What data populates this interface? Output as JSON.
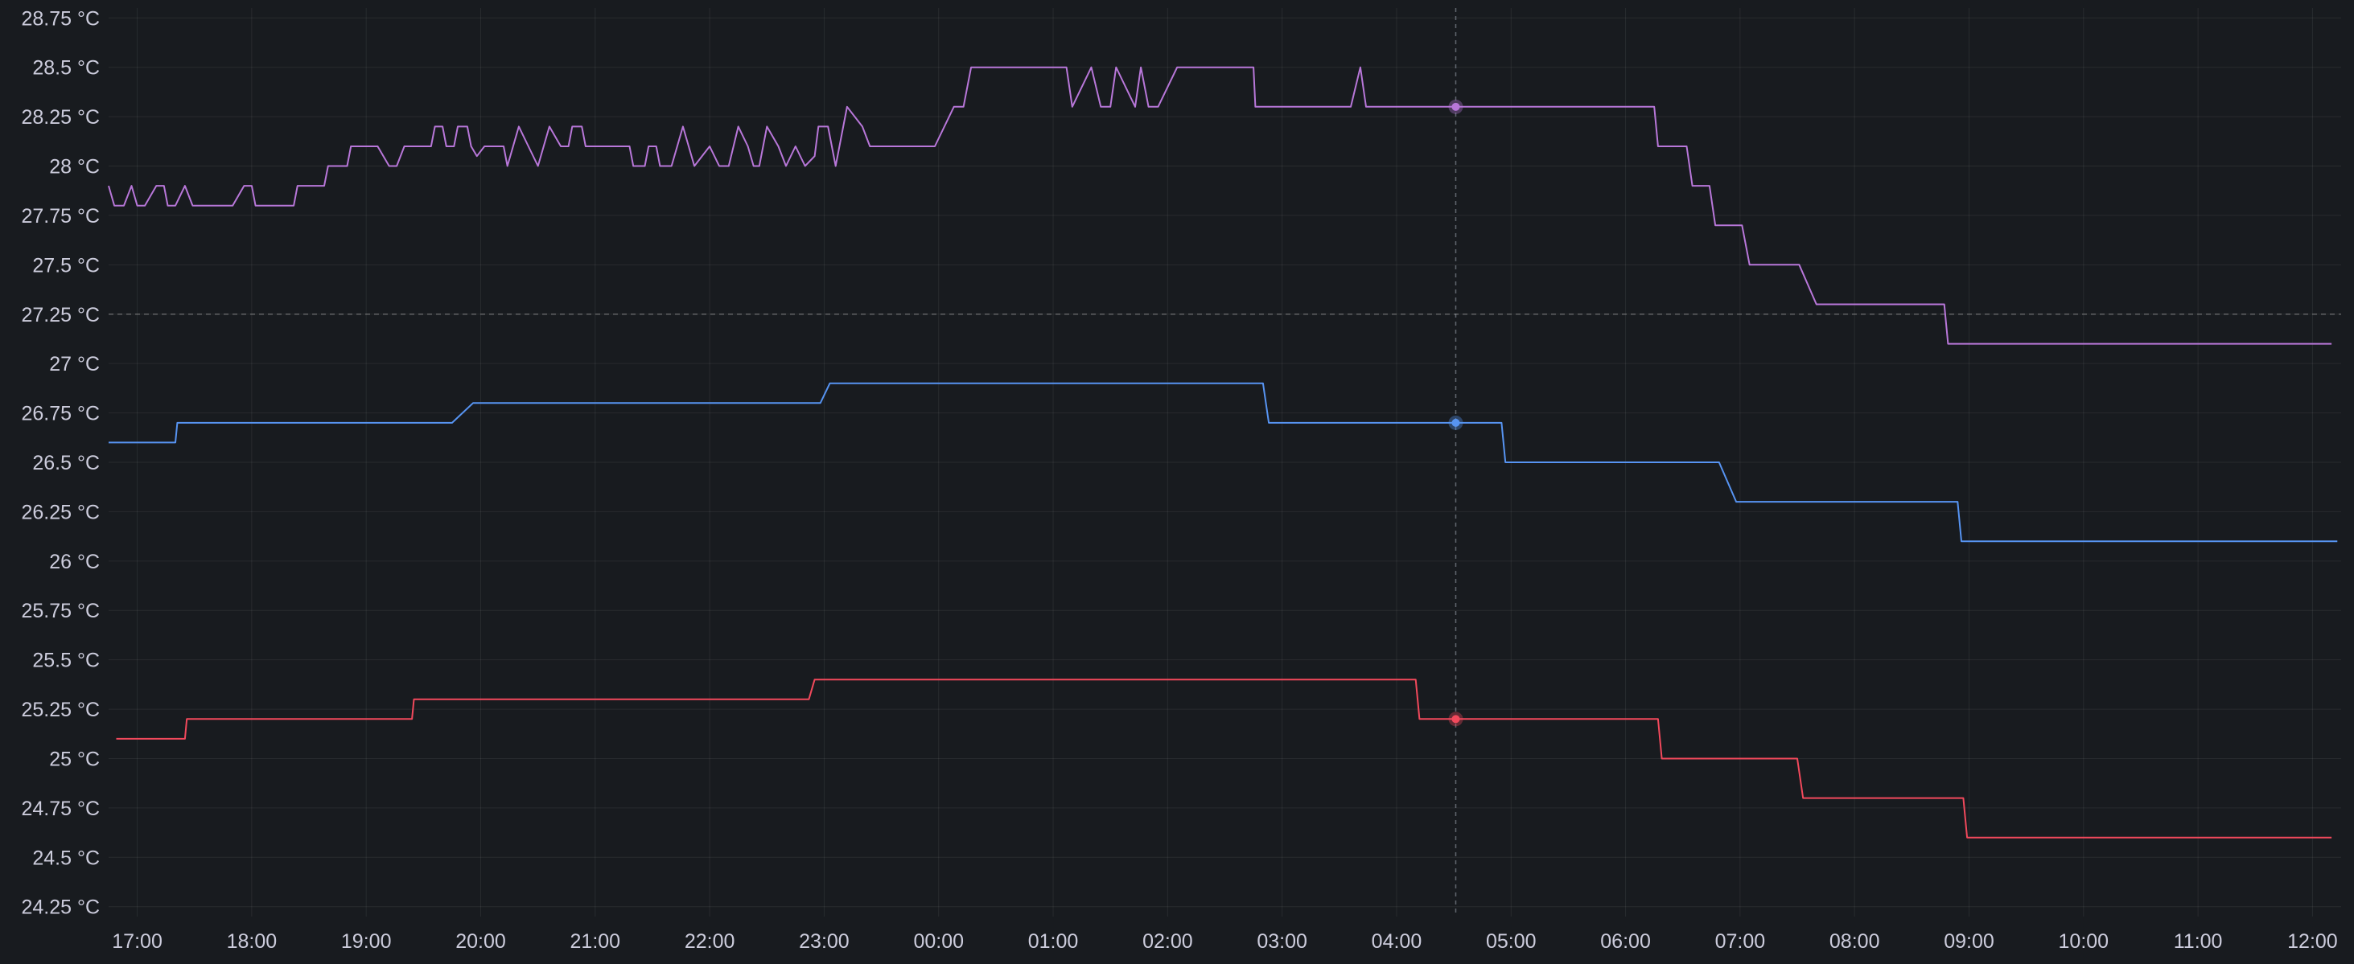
{
  "chart_data": {
    "type": "line",
    "title": "",
    "xlabel": "",
    "ylabel": "",
    "y_unit": "°C",
    "grid": true,
    "legend": "none",
    "ylim": [
      24.2,
      28.8
    ],
    "xlim": [
      "16:45",
      "12:15"
    ],
    "y_ticks": [
      "24.25 °C",
      "24.5 °C",
      "24.75 °C",
      "25 °C",
      "25.25 °C",
      "25.5 °C",
      "25.75 °C",
      "26 °C",
      "26.25 °C",
      "26.5 °C",
      "26.75 °C",
      "27 °C",
      "27.25 °C",
      "27.5 °C",
      "27.75 °C",
      "28 °C",
      "28.25 °C",
      "28.5 °C",
      "28.75 °C"
    ],
    "y_tick_values": [
      24.25,
      24.5,
      24.75,
      25,
      25.25,
      25.5,
      25.75,
      26,
      26.25,
      26.5,
      26.75,
      27,
      27.25,
      27.5,
      27.75,
      28,
      28.25,
      28.5,
      28.75
    ],
    "x_ticks": [
      "17:00",
      "18:00",
      "19:00",
      "20:00",
      "21:00",
      "22:00",
      "23:00",
      "00:00",
      "01:00",
      "02:00",
      "03:00",
      "04:00",
      "05:00",
      "06:00",
      "07:00",
      "08:00",
      "09:00",
      "10:00",
      "11:00",
      "12:00"
    ],
    "cursor_time": "04:31",
    "threshold_line": 27.25,
    "series": [
      {
        "color": "#b877d9",
        "cursor_value": 28.3,
        "points": [
          [
            "16:45",
            27.9
          ],
          [
            "16:48",
            27.8
          ],
          [
            "16:53",
            27.8
          ],
          [
            "16:57",
            27.9
          ],
          [
            "17:00",
            27.8
          ],
          [
            "17:04",
            27.8
          ],
          [
            "17:10",
            27.9
          ],
          [
            "17:14",
            27.9
          ],
          [
            "17:16",
            27.8
          ],
          [
            "17:20",
            27.8
          ],
          [
            "17:25",
            27.9
          ],
          [
            "17:29",
            27.8
          ],
          [
            "17:50",
            27.8
          ],
          [
            "17:56",
            27.9
          ],
          [
            "18:00",
            27.9
          ],
          [
            "18:02",
            27.8
          ],
          [
            "18:22",
            27.8
          ],
          [
            "18:24",
            27.9
          ],
          [
            "18:38",
            27.9
          ],
          [
            "18:40",
            28.0
          ],
          [
            "18:50",
            28.0
          ],
          [
            "18:52",
            28.1
          ],
          [
            "19:06",
            28.1
          ],
          [
            "19:12",
            28.0
          ],
          [
            "19:16",
            28.0
          ],
          [
            "19:20",
            28.1
          ],
          [
            "19:34",
            28.1
          ],
          [
            "19:36",
            28.2
          ],
          [
            "19:40",
            28.2
          ],
          [
            "19:42",
            28.1
          ],
          [
            "19:46",
            28.1
          ],
          [
            "19:48",
            28.2
          ],
          [
            "19:53",
            28.2
          ],
          [
            "19:55",
            28.1
          ],
          [
            "19:58",
            28.05
          ],
          [
            "20:02",
            28.1
          ],
          [
            "20:12",
            28.1
          ],
          [
            "20:14",
            28.0
          ],
          [
            "20:20",
            28.2
          ],
          [
            "20:25",
            28.1
          ],
          [
            "20:30",
            28.0
          ],
          [
            "20:36",
            28.2
          ],
          [
            "20:42",
            28.1
          ],
          [
            "20:46",
            28.1
          ],
          [
            "20:48",
            28.2
          ],
          [
            "20:53",
            28.2
          ],
          [
            "20:55",
            28.1
          ],
          [
            "21:18",
            28.1
          ],
          [
            "21:20",
            28.0
          ],
          [
            "21:26",
            28.0
          ],
          [
            "21:28",
            28.1
          ],
          [
            "21:32",
            28.1
          ],
          [
            "21:34",
            28.0
          ],
          [
            "21:40",
            28.0
          ],
          [
            "21:46",
            28.2
          ],
          [
            "21:52",
            28.0
          ],
          [
            "22:00",
            28.1
          ],
          [
            "22:05",
            28.0
          ],
          [
            "22:10",
            28.0
          ],
          [
            "22:15",
            28.2
          ],
          [
            "22:20",
            28.1
          ],
          [
            "22:23",
            28.0
          ],
          [
            "22:26",
            28.0
          ],
          [
            "22:30",
            28.2
          ],
          [
            "22:36",
            28.1
          ],
          [
            "22:40",
            28.0
          ],
          [
            "22:45",
            28.1
          ],
          [
            "22:50",
            28.0
          ],
          [
            "22:55",
            28.05
          ],
          [
            "22:57",
            28.2
          ],
          [
            "23:02",
            28.2
          ],
          [
            "23:06",
            28.0
          ],
          [
            "23:12",
            28.3
          ],
          [
            "23:20",
            28.2
          ],
          [
            "23:24",
            28.1
          ],
          [
            "23:58",
            28.1
          ],
          [
            "00:08",
            28.3
          ],
          [
            "00:13",
            28.3
          ],
          [
            "00:17",
            28.5
          ],
          [
            "01:07",
            28.5
          ],
          [
            "01:10",
            28.3
          ],
          [
            "01:20",
            28.5
          ],
          [
            "01:25",
            28.3
          ],
          [
            "01:30",
            28.3
          ],
          [
            "01:33",
            28.5
          ],
          [
            "01:43",
            28.3
          ],
          [
            "01:46",
            28.5
          ],
          [
            "01:50",
            28.3
          ],
          [
            "01:55",
            28.3
          ],
          [
            "02:05",
            28.5
          ],
          [
            "02:45",
            28.5
          ],
          [
            "02:46",
            28.3
          ],
          [
            "03:36",
            28.3
          ],
          [
            "03:41",
            28.5
          ],
          [
            "03:44",
            28.3
          ],
          [
            "06:15",
            28.3
          ],
          [
            "06:17",
            28.1
          ],
          [
            "06:32",
            28.1
          ],
          [
            "06:35",
            27.9
          ],
          [
            "06:44",
            27.9
          ],
          [
            "06:47",
            27.7
          ],
          [
            "07:01",
            27.7
          ],
          [
            "07:05",
            27.5
          ],
          [
            "07:31",
            27.5
          ],
          [
            "07:40",
            27.3
          ],
          [
            "08:47",
            27.3
          ],
          [
            "08:49",
            27.1
          ],
          [
            "12:10",
            27.1
          ]
        ]
      },
      {
        "color": "#5794f2",
        "cursor_value": 26.7,
        "points": [
          [
            "16:45",
            26.6
          ],
          [
            "17:20",
            26.6
          ],
          [
            "17:21",
            26.7
          ],
          [
            "19:45",
            26.7
          ],
          [
            "19:56",
            26.8
          ],
          [
            "22:58",
            26.8
          ],
          [
            "23:03",
            26.9
          ],
          [
            "02:50",
            26.9
          ],
          [
            "02:53",
            26.7
          ],
          [
            "04:55",
            26.7
          ],
          [
            "04:57",
            26.5
          ],
          [
            "06:49",
            26.5
          ],
          [
            "06:58",
            26.3
          ],
          [
            "08:54",
            26.3
          ],
          [
            "08:56",
            26.1
          ],
          [
            "12:13",
            26.1
          ]
        ]
      },
      {
        "color": "#f2495c",
        "cursor_value": 25.2,
        "points": [
          [
            "16:49",
            25.1
          ],
          [
            "17:25",
            25.1
          ],
          [
            "17:26",
            25.2
          ],
          [
            "19:24",
            25.2
          ],
          [
            "19:25",
            25.3
          ],
          [
            "22:52",
            25.3
          ],
          [
            "22:55",
            25.4
          ],
          [
            "04:10",
            25.4
          ],
          [
            "04:12",
            25.2
          ],
          [
            "06:17",
            25.2
          ],
          [
            "06:19",
            25.0
          ],
          [
            "07:30",
            25.0
          ],
          [
            "07:33",
            24.8
          ],
          [
            "08:57",
            24.8
          ],
          [
            "08:59",
            24.6
          ],
          [
            "12:10",
            24.6
          ]
        ]
      }
    ]
  }
}
